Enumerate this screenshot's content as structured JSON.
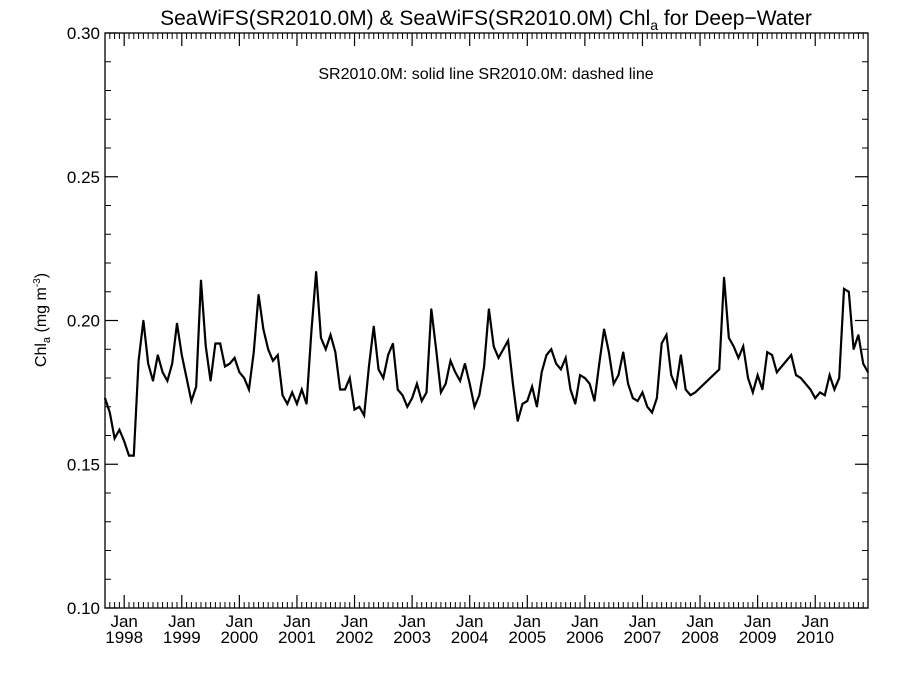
{
  "chart_data": {
    "type": "line",
    "title": {
      "prefix": "SeaWiFS(SR2010.0M) & SeaWiFS(SR2010.0M)  Chl",
      "sub": "a",
      "suffix": " for Deep−Water"
    },
    "annotation": "SR2010.0M: solid line   SR2010.0M: dashed line",
    "ylabel": {
      "prefix": "Chl",
      "sub": "a",
      "mid": " (mg m",
      "sup": "-3",
      "suffix": ")"
    },
    "ylim": [
      0.1,
      0.3
    ],
    "yticks": [
      {
        "value": 0.1,
        "label": "0.10"
      },
      {
        "value": 0.15,
        "label": "0.15"
      },
      {
        "value": 0.2,
        "label": "0.20"
      },
      {
        "value": 0.25,
        "label": "0.25"
      },
      {
        "value": 0.3,
        "label": "0.30"
      }
    ],
    "xlim": [
      "1997-09-01",
      "2010-12-01"
    ],
    "xticks": [
      {
        "date": "1998-01-01",
        "month": "Jan",
        "year": "1998"
      },
      {
        "date": "1999-01-01",
        "month": "Jan",
        "year": "1999"
      },
      {
        "date": "2000-01-01",
        "month": "Jan",
        "year": "2000"
      },
      {
        "date": "2001-01-01",
        "month": "Jan",
        "year": "2001"
      },
      {
        "date": "2002-01-01",
        "month": "Jan",
        "year": "2002"
      },
      {
        "date": "2003-01-01",
        "month": "Jan",
        "year": "2003"
      },
      {
        "date": "2004-01-01",
        "month": "Jan",
        "year": "2004"
      },
      {
        "date": "2005-01-01",
        "month": "Jan",
        "year": "2005"
      },
      {
        "date": "2006-01-01",
        "month": "Jan",
        "year": "2006"
      },
      {
        "date": "2007-01-01",
        "month": "Jan",
        "year": "2007"
      },
      {
        "date": "2008-01-01",
        "month": "Jan",
        "year": "2008"
      },
      {
        "date": "2009-01-01",
        "month": "Jan",
        "year": "2009"
      },
      {
        "date": "2010-01-01",
        "month": "Jan",
        "year": "2010"
      }
    ],
    "series": [
      {
        "style": "solid",
        "x": [
          "1997-09",
          "1997-10",
          "1997-11",
          "1997-12",
          "1998-01",
          "1998-02",
          "1998-03",
          "1998-04",
          "1998-05",
          "1998-06",
          "1998-07",
          "1998-08",
          "1998-09",
          "1998-10",
          "1998-11",
          "1998-12",
          "1999-01",
          "1999-02",
          "1999-03",
          "1999-04",
          "1999-05",
          "1999-06",
          "1999-07",
          "1999-08",
          "1999-09",
          "1999-10",
          "1999-11",
          "1999-12",
          "2000-01",
          "2000-02",
          "2000-03",
          "2000-04",
          "2000-05",
          "2000-06",
          "2000-07",
          "2000-08",
          "2000-09",
          "2000-10",
          "2000-11",
          "2000-12",
          "2001-01",
          "2001-02",
          "2001-03",
          "2001-04",
          "2001-05",
          "2001-06",
          "2001-07",
          "2001-08",
          "2001-09",
          "2001-10",
          "2001-11",
          "2001-12",
          "2002-01",
          "2002-02",
          "2002-03",
          "2002-04",
          "2002-05",
          "2002-06",
          "2002-07",
          "2002-08",
          "2002-09",
          "2002-10",
          "2002-11",
          "2002-12",
          "2003-01",
          "2003-02",
          "2003-03",
          "2003-04",
          "2003-05",
          "2003-06",
          "2003-07",
          "2003-08",
          "2003-09",
          "2003-10",
          "2003-11",
          "2003-12",
          "2004-01",
          "2004-02",
          "2004-03",
          "2004-04",
          "2004-05",
          "2004-06",
          "2004-07",
          "2004-08",
          "2004-09",
          "2004-10",
          "2004-11",
          "2004-12",
          "2005-01",
          "2005-02",
          "2005-03",
          "2005-04",
          "2005-05",
          "2005-06",
          "2005-07",
          "2005-08",
          "2005-09",
          "2005-10",
          "2005-11",
          "2005-12",
          "2006-01",
          "2006-02",
          "2006-03",
          "2006-04",
          "2006-05",
          "2006-06",
          "2006-07",
          "2006-08",
          "2006-09",
          "2006-10",
          "2006-11",
          "2006-12",
          "2007-01",
          "2007-02",
          "2007-03",
          "2007-04",
          "2007-05",
          "2007-06",
          "2007-07",
          "2007-08",
          "2007-09",
          "2007-10",
          "2007-11",
          "2007-12",
          "2008-05",
          "2008-06",
          "2008-07",
          "2008-08",
          "2008-09",
          "2008-10",
          "2008-11",
          "2008-12",
          "2009-01",
          "2009-02",
          "2009-03",
          "2009-04",
          "2009-05",
          "2009-06",
          "2009-07",
          "2009-08",
          "2009-09",
          "2009-10",
          "2009-11",
          "2009-12",
          "2010-01",
          "2010-02",
          "2010-03",
          "2010-04",
          "2010-05",
          "2010-06",
          "2010-07",
          "2010-08",
          "2010-09",
          "2010-10",
          "2010-11",
          "2010-12"
        ],
        "y": [
          0.173,
          0.168,
          0.159,
          0.162,
          0.158,
          0.153,
          0.153,
          0.186,
          0.2,
          0.185,
          0.179,
          0.188,
          0.182,
          0.179,
          0.185,
          0.199,
          0.188,
          0.18,
          0.172,
          0.177,
          0.214,
          0.191,
          0.179,
          0.192,
          0.192,
          0.184,
          0.185,
          0.187,
          0.182,
          0.18,
          0.176,
          0.189,
          0.209,
          0.197,
          0.19,
          0.186,
          0.188,
          0.174,
          0.171,
          0.175,
          0.171,
          0.176,
          0.171,
          0.196,
          0.217,
          0.194,
          0.19,
          0.195,
          0.189,
          0.176,
          0.176,
          0.18,
          0.169,
          0.17,
          0.167,
          0.184,
          0.198,
          0.183,
          0.18,
          0.188,
          0.192,
          0.176,
          0.174,
          0.17,
          0.173,
          0.178,
          0.172,
          0.175,
          0.204,
          0.19,
          0.175,
          0.178,
          0.186,
          0.182,
          0.179,
          0.185,
          0.178,
          0.17,
          0.174,
          0.184,
          0.204,
          0.191,
          0.187,
          0.19,
          0.193,
          0.178,
          0.165,
          0.171,
          0.172,
          0.177,
          0.17,
          0.182,
          0.188,
          0.19,
          0.185,
          0.183,
          0.187,
          0.176,
          0.171,
          0.181,
          0.18,
          0.178,
          0.172,
          0.185,
          0.197,
          0.189,
          0.178,
          0.181,
          0.189,
          0.178,
          0.173,
          0.172,
          0.175,
          0.17,
          0.168,
          0.173,
          0.192,
          0.195,
          0.181,
          0.177,
          0.188,
          0.176,
          0.174,
          0.175,
          0.183,
          0.215,
          0.194,
          0.191,
          0.187,
          0.191,
          0.18,
          0.175,
          0.181,
          0.176,
          0.189,
          0.188,
          0.182,
          0.184,
          0.186,
          0.188,
          0.181,
          0.18,
          0.178,
          0.176,
          0.173,
          0.175,
          0.174,
          0.181,
          0.176,
          0.18,
          0.211,
          0.21,
          0.19,
          0.195,
          0.185,
          0.182
        ]
      }
    ],
    "grid": false,
    "legend": "none"
  }
}
